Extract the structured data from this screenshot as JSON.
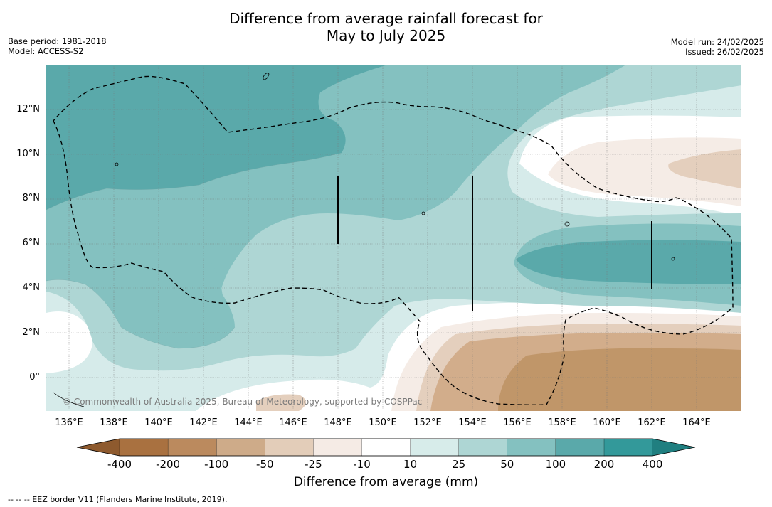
{
  "header": {
    "title_line1": "Difference from average rainfall forecast for",
    "title_line2": "May to July 2025",
    "base_period": "Base period: 1981-2018",
    "model": "Model: ACCESS-S2",
    "model_run": "Model run: 24/02/2025",
    "issued": "Issued: 26/02/2025"
  },
  "map": {
    "lat_ticks": [
      "12°N",
      "10°N",
      "8°N",
      "6°N",
      "4°N",
      "2°N",
      "0°"
    ],
    "lon_ticks": [
      "136°E",
      "138°E",
      "140°E",
      "142°E",
      "144°E",
      "146°E",
      "148°E",
      "150°E",
      "152°E",
      "154°E",
      "156°E",
      "158°E",
      "160°E",
      "162°E",
      "164°E"
    ],
    "copyright": "© Commonwealth of Australia 2025, Bureau of Meteorology, supported by COSPPac",
    "colors": {
      "teal_200_400": "#5aa9aa",
      "teal_100_200": "#84c1c0",
      "teal_50_100": "#aed6d4",
      "teal_25_50": "#d6ebea",
      "white": "#ffffff",
      "brown_25_10": "#f5ece6",
      "brown_50_25": "#e4cfbd",
      "brown_100_50": "#d2ad8b",
      "brown_200_100": "#c09669"
    }
  },
  "colorbar": {
    "ticks": [
      "-400",
      "-200",
      "-100",
      "-50",
      "-25",
      "-10",
      "10",
      "25",
      "50",
      "100",
      "200",
      "400"
    ],
    "colors": [
      "#a97140",
      "#bb8a5e",
      "#ceab89",
      "#e3cdb9",
      "#f5ebe5",
      "#ffffff",
      "#d7ecea",
      "#aed6d4",
      "#84c1c0",
      "#5aa9aa",
      "#33999a"
    ],
    "extend_low_color": "#8e5a2e",
    "extend_high_color": "#207f80",
    "label": "Difference from average (mm)"
  },
  "footer": {
    "legend": "--  --  -- EEZ border V11 (Flanders Marine Institute, 2019)."
  }
}
